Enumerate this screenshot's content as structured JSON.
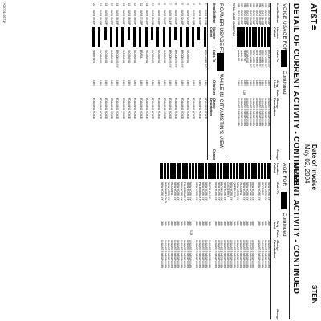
{
  "header": {
    "logo_text": "AT&T",
    "date_label": "Date of Invoice",
    "date_value": "May 02, 2004",
    "name_fragment": "STEIN"
  },
  "left": {
    "title": "URRENT ACTIVITY - CONTINUED",
    "section": "AGE FOR",
    "continued": "Continued",
    "col_headers": [
      "Number\nCalled",
      "Calls To",
      "Orig\nUsed",
      "Rate",
      "Charge\nDescription",
      "Charge"
    ],
    "rows": [
      [
        "NEW YORK NY",
        "1MN",
        "UNLIMIT 5 WKN/N0 MIN"
      ],
      [
        "NEW YORK NY",
        "1MN",
        "UNLIMIT 5 WKN/N0 MIN"
      ],
      [
        "INCOMING",
        "1MN",
        "UNLIMIT 5 WKN/N0 MIN"
      ],
      [
        "NEW YORK NY",
        "1MN",
        "UNLIMIT 5 WKN/N0 MIN"
      ],
      [
        "",
        "",
        ""
      ],
      [
        "NEW YORK NY",
        "1MN",
        "UNLIMIT 5 WKN/N0 MIN"
      ],
      [
        "NEW YORK NY",
        "1MN",
        "UNLIMIT 5 WKN/N0 MIN"
      ],
      [
        "NEW YORK NY",
        "1MN",
        "UNLIMIT 5 WKN/N0 MIN"
      ],
      [
        "NEW YORK NY",
        "1MN",
        "UNLIMIT 5 WKN/N0 MIN"
      ],
      [
        "INCOMING",
        "1MN",
        "UNLIMIT 5 WKN/N0 MIN"
      ],
      [
        "NEW YORK NY",
        "1MN",
        "UNLIMIT 5 WKN/N0 MIN"
      ],
      [
        "QUEENS NY",
        "1MN",
        "UNLIMIT 5 WKN/N0 MIN"
      ],
      [
        "NEW YORK NY",
        "1MN",
        "UNLIMIT 5 WKN/N0 MIN"
      ],
      [
        "CUSTER NY",
        "1MN",
        "UNLIMIT 5 WKN/N0 MIN"
      ],
      [
        "NEW YORK NY",
        "1MN",
        "UNLIMIT 5 WKN/N0 MIN"
      ],
      [
        "BROOKLYN NY",
        "1MN",
        "UNLIMIT 5 WKN/N0 MIN"
      ],
      [
        "NEW YORK NY",
        "1MN",
        "UNLIMIT 5 WKN/N0 MIN"
      ],
      [
        "NEW YORK NY",
        "1MN",
        "UNLIMIT 5 WKN/N0 MIN"
      ],
      [
        "",
        "",
        ""
      ],
      [
        "ROCKLAN NY",
        "1MN",
        "UNLIMIT 5 WKN/N0 MIN"
      ],
      [
        "NEW YORK NY",
        "1MN",
        "UNLIMIT 5 WKN/N0 MIN"
      ],
      [
        "NEW YORK NY",
        "1MN",
        "UNLIMIT 5 WKN/N0 MIN"
      ],
      [
        "PALM BEACH FL",
        "1MN",
        "UNLIMIT 5 WKN/N0 MIN"
      ],
      [
        "NEW YORK NY",
        "1MN",
        "UNLIMIT 5 WKN/N0 MIN"
      ],
      [
        "",
        "",
        ""
      ],
      [
        "NEW YORK NY",
        "1MN",
        "UNLIMIT 5 WKN/N0 MIN"
      ],
      [
        "NEW YORK NY",
        "1MN",
        "UNLIMIT 5 WKN/N0 MIN"
      ],
      [
        "PALM BEACH FL",
        "1MN",
        "UNLIMIT 5 WKN/N0 MIN"
      ],
      [
        "NEW YORK NY",
        "1MN",
        "UNLIMIT 5 WKN/N0 MIN"
      ],
      [
        "NEW YORK NY",
        "1MN",
        "UNLIMIT 5 WKN/N0 MIN"
      ],
      [
        "NEW YORK NY",
        "1MN",
        "UNLIMIT 5 WKN/N0 MIN"
      ],
      [
        "INCOMING",
        "1MN",
        "UNLIMIT 5 WKN/N0 MIN"
      ],
      [
        "NEW YORK NY",
        "1MN",
        "UNLIMIT 5 WKN/N0 MIN"
      ],
      [
        "WPALMBEACH FL",
        "1MN",
        "UNLIMIT 5 WKN/N0 MIN"
      ],
      [
        "NEW YORK NY",
        "1MN",
        "UNLIMIT 5 WKN/N0 MIN"
      ]
    ],
    "charge_mark": "0.28"
  },
  "right": {
    "title": "DETAIL OF CURRENT ACTIVITY - CONTINUED",
    "section": "VOICE USAGE FOR",
    "continued": "Continued",
    "col_headers": [
      "Item Date",
      "Time",
      "Number\nCalled",
      "Calls To",
      "Orig\nUsed",
      "Rate",
      "Charge\nDescription",
      "Charge"
    ],
    "rows": [
      [
        "958",
        "05/02",
        "08:03P",
        "BROOKLYN NY",
        "1MN",
        "UNLIMIT 5 WKN/N0 MIN"
      ],
      [
        "959",
        "05/02",
        "08:03P",
        "NEW YORK NY",
        "1MN",
        "UNLIMIT 5 WKN/N0 MIN"
      ],
      [
        "960",
        "05/02",
        "08:44P",
        "NEW YORK NY",
        "1MN",
        "UNLIMIT 5 WKN/N0 MIN"
      ],
      [
        "961",
        "05/02",
        "08:46P",
        "NEW YORK NY",
        "1MN",
        "UNLIMIT 5 WKN/N0 MIN"
      ],
      [
        "962",
        "05/02",
        "09:02P",
        "NEW YORK NY",
        "1MN",
        "UNLIMIT 5 WKN/N0 MIN"
      ],
      [
        "963",
        "05/02",
        "09:06P",
        "NEW YORK NY",
        "1MN",
        "UNLIMIT 5 WKN/N0 MIN"
      ],
      [
        "964",
        "05/02",
        "09:07P",
        "NEW YORK NY",
        "1MN",
        "UNLIMIT 5 WKN/N0 MIN"
      ],
      [
        "965",
        "05/02",
        "09:08P",
        "INCOMING",
        "1MN",
        "UNLIMIT 5 WKN/N0 MIN"
      ],
      [
        "966",
        "05/02",
        "09:35P",
        "mobile VA",
        "1MN",
        "UNLIMIT 5 WKN/N0 MIN"
      ],
      [
        "967",
        "05/02",
        "09:39P",
        "mobile VA",
        "1MN",
        "UNLIMIT 5 WKN/N0 MIN"
      ],
      [
        "968",
        "05/02",
        "10:24P",
        "mobile VA",
        "1MN",
        "UNLIMIT 5 WKN/N0 MIN"
      ]
    ],
    "total_label": "TOTAL VOICE USAGE FOR",
    "roamer_section": "ROAMER USAGE FOR",
    "roamer_suffix": "WHILE IN CITYAMSTIN'S VIEW",
    "roamer_col_headers": [
      "Item Date",
      "Time",
      "Number\nCalled",
      "Calls To",
      "Orig Used",
      "Charge\nDescription",
      "Charge"
    ],
    "roamer_rows": [
      [
        "1",
        "04/08",
        "01:02P",
        "NEW YORK NY",
        "1MN",
        "ROAMING VOICE"
      ],
      [
        "2",
        "04/08",
        "01:05P",
        "",
        "1MN",
        "ROAMING VOICE"
      ],
      [
        "3",
        "04/08",
        "01:08P",
        "",
        "1MN",
        "ROAMING VOICE"
      ],
      [
        "4",
        "04/08",
        "02:32P",
        "INCOMING",
        "1MN",
        "ROAMING VOICE"
      ],
      [
        "5",
        "04/08",
        "02:44P",
        "BROOKLYN NY",
        "1MN",
        "ROAMING VOICE"
      ],
      [
        "6",
        "04/08",
        "03:02P",
        "BROOKLYN NY",
        "1MN",
        "ROAMING VOICE"
      ],
      [
        "7",
        "04/08",
        "03:11P",
        "BROOKLYN NY",
        "1MN",
        "ROAMING VOICE"
      ],
      [
        "8",
        "04/08",
        "03:25P",
        "INCOMING",
        "1MN",
        "ROAMING VOICE"
      ],
      [
        "9",
        "04/08",
        "03:44P",
        "INCOMING",
        "1MN",
        "ROAMING VOICE"
      ],
      [
        "10",
        "04/08",
        "05:05P",
        "INCOMING",
        "1MN",
        "ROAMING VOICE"
      ],
      [
        "11",
        "04/08",
        "05:22P",
        "INCOMING",
        "1MN",
        "ROAMING VOICE"
      ],
      [
        "12",
        "04/08",
        "07:28P",
        "BRAZIL",
        "1MN",
        "ROAMING VOICE"
      ],
      [
        "13",
        "04/08",
        "08:05P",
        "INCOMING",
        "1MN",
        "ROAMING VOICE"
      ],
      [
        "14",
        "04/08",
        "08:06P",
        "INCOMING",
        "1MN",
        "ROAMING VOICE"
      ],
      [
        "15",
        "04/08",
        "08:26P",
        "INCOMING",
        "1MN",
        "ROAMING VOICE"
      ],
      [
        "16",
        "04/08",
        "08:35P",
        "BROOKLYN NY",
        "1MN",
        "ROAMING VOICE"
      ],
      [
        "17",
        "04/08",
        "08:57P",
        "INCOMING",
        "1MN",
        "ROAMING VOICE"
      ],
      [
        "18",
        "04/08",
        "09:02P",
        "INCOMING",
        "1MN",
        "ROAMING VOICE"
      ],
      [
        "19",
        "04/08",
        "09:15P",
        "INCOMING",
        "1MN",
        "ROAMING VOICE"
      ],
      [
        "20",
        "04/08",
        "09:35P",
        "mobile BRA",
        "1MN",
        "ROAMING VOICE"
      ]
    ],
    "charge_mark": "0.28"
  },
  "footer": {
    "side_code": "*0070110571*"
  }
}
